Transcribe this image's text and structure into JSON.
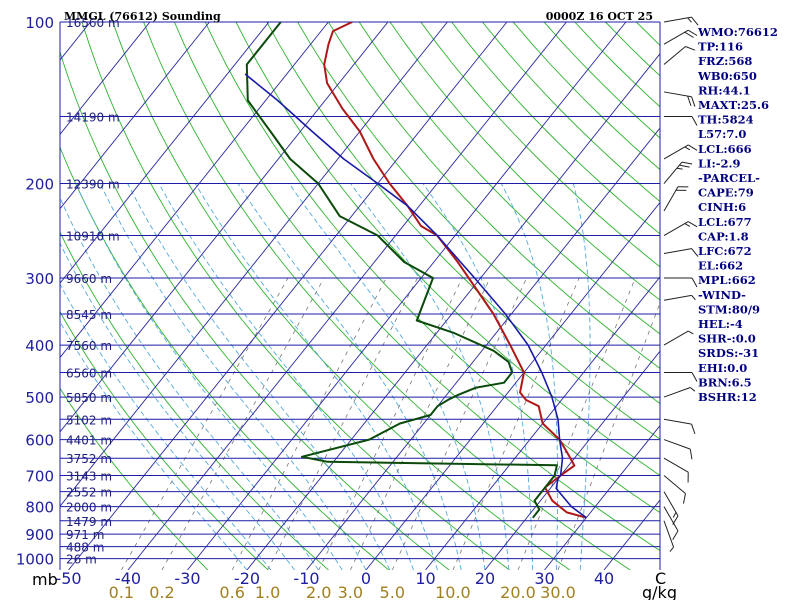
{
  "title": "MMGL (76612) Sounding",
  "datetime": "0000Z 16 OCT 25",
  "pressure_unit": "mb",
  "temp_unit": "C",
  "mixing_unit": "g/kg",
  "colors": {
    "isobar": "#1c1ca8",
    "isotherm": "#2a2aa0",
    "dry_adiabat": "#2fb32f",
    "moist_adiabat": "#55aadd",
    "mixing_ratio": "#777777",
    "temperature": "#b01818",
    "dewpoint": "#0b4a0b",
    "parcel": "#1a1aa8",
    "wind_barb": "#222222",
    "axis_text": "#2020a0",
    "mixing_text": "#a08020",
    "index_text": "#000080"
  },
  "chart_data": {
    "type": "skew-t",
    "x_ticks": [
      -50,
      -40,
      -30,
      -20,
      -10,
      0,
      10,
      20,
      30,
      40
    ],
    "pressure_labels": [
      100,
      200,
      300,
      400,
      500,
      600,
      700,
      800,
      900,
      1000
    ],
    "heights": [
      {
        "p": 100,
        "label": "16560 m"
      },
      {
        "p": 150,
        "label": "14190 m"
      },
      {
        "p": 200,
        "label": "12390 m"
      },
      {
        "p": 250,
        "label": "10910 m"
      },
      {
        "p": 300,
        "label": "9660 m"
      },
      {
        "p": 350,
        "label": "8545 m"
      },
      {
        "p": 400,
        "label": "7560 m"
      },
      {
        "p": 450,
        "label": "6560 m"
      },
      {
        "p": 500,
        "label": "5850 m"
      },
      {
        "p": 550,
        "label": "5102 m"
      },
      {
        "p": 600,
        "label": "4401 m"
      },
      {
        "p": 650,
        "label": "3752 m"
      },
      {
        "p": 700,
        "label": "3143 m"
      },
      {
        "p": 750,
        "label": "2552 m"
      },
      {
        "p": 800,
        "label": "2000 m"
      },
      {
        "p": 850,
        "label": "1479 m"
      },
      {
        "p": 900,
        "label": "971 m"
      },
      {
        "p": 950,
        "label": "488 m"
      },
      {
        "p": 1000,
        "label": "26 m"
      }
    ],
    "mixing_ratios": [
      {
        "w": 0.1,
        "label": "0.1"
      },
      {
        "w": 0.2,
        "label": "0.2"
      },
      {
        "w": 0.6,
        "label": "0.6"
      },
      {
        "w": 1.0,
        "label": "1.0"
      },
      {
        "w": 2.0,
        "label": "2.0"
      },
      {
        "w": 3.0,
        "label": "3.0"
      },
      {
        "w": 5.0,
        "label": "5.0"
      },
      {
        "w": 10.0,
        "label": "10.0"
      },
      {
        "w": 20.0,
        "label": "20.0"
      },
      {
        "w": 30.0,
        "label": "30.0"
      }
    ],
    "temperature": [
      [
        839,
        30
      ],
      [
        820,
        26
      ],
      [
        780,
        22
      ],
      [
        737,
        19
      ],
      [
        700,
        20
      ],
      [
        671,
        21
      ],
      [
        646,
        19
      ],
      [
        600,
        15
      ],
      [
        560,
        10
      ],
      [
        520,
        7
      ],
      [
        506,
        4
      ],
      [
        490,
        2
      ],
      [
        450,
        0
      ],
      [
        400,
        -6
      ],
      [
        350,
        -13
      ],
      [
        300,
        -22
      ],
      [
        280,
        -26
      ],
      [
        250,
        -33
      ],
      [
        240,
        -37
      ],
      [
        220,
        -42
      ],
      [
        200,
        -48
      ],
      [
        180,
        -54
      ],
      [
        160,
        -60
      ],
      [
        145,
        -66
      ],
      [
        130,
        -72
      ],
      [
        120,
        -75
      ],
      [
        110,
        -77
      ],
      [
        104,
        -78
      ],
      [
        100,
        -76
      ]
    ],
    "dewpoint": [
      [
        839,
        21
      ],
      [
        810,
        21
      ],
      [
        780,
        19
      ],
      [
        740,
        19
      ],
      [
        700,
        19
      ],
      [
        670,
        18
      ],
      [
        660,
        -21
      ],
      [
        646,
        -26
      ],
      [
        600,
        -17
      ],
      [
        560,
        -14
      ],
      [
        540,
        -10
      ],
      [
        520,
        -10
      ],
      [
        505,
        -9
      ],
      [
        495,
        -8
      ],
      [
        480,
        -6
      ],
      [
        470,
        -2
      ],
      [
        450,
        -2
      ],
      [
        430,
        -4
      ],
      [
        410,
        -8
      ],
      [
        380,
        -17
      ],
      [
        360,
        -25
      ],
      [
        300,
        -28
      ],
      [
        280,
        -35
      ],
      [
        250,
        -43
      ],
      [
        230,
        -52
      ],
      [
        200,
        -60
      ],
      [
        180,
        -68
      ],
      [
        160,
        -75
      ],
      [
        140,
        -83
      ],
      [
        120,
        -88
      ],
      [
        100,
        -88
      ]
    ],
    "parcel": [
      [
        839,
        30
      ],
      [
        800,
        26
      ],
      [
        740,
        21
      ],
      [
        710,
        20
      ],
      [
        700,
        20
      ],
      [
        650,
        18
      ],
      [
        600,
        15
      ],
      [
        550,
        12
      ],
      [
        500,
        8
      ],
      [
        450,
        3
      ],
      [
        400,
        -3
      ],
      [
        350,
        -11
      ],
      [
        300,
        -21
      ],
      [
        250,
        -33
      ],
      [
        220,
        -42
      ],
      [
        200,
        -50
      ],
      [
        180,
        -59
      ],
      [
        160,
        -68
      ],
      [
        140,
        -78
      ],
      [
        125,
        -87
      ]
    ],
    "winds": [
      {
        "p": 100,
        "dir": 80,
        "spd": 15
      },
      {
        "p": 110,
        "dir": 60,
        "spd": 20
      },
      {
        "p": 120,
        "dir": 50,
        "spd": 10
      },
      {
        "p": 135,
        "dir": 100,
        "spd": 20
      },
      {
        "p": 150,
        "dir": 90,
        "spd": 10
      },
      {
        "p": 180,
        "dir": 60,
        "spd": 15
      },
      {
        "p": 200,
        "dir": 40,
        "spd": 25
      },
      {
        "p": 225,
        "dir": 30,
        "spd": 20
      },
      {
        "p": 250,
        "dir": 60,
        "spd": 15
      },
      {
        "p": 270,
        "dir": 80,
        "spd": 10
      },
      {
        "p": 300,
        "dir": 90,
        "spd": 10
      },
      {
        "p": 330,
        "dir": 80,
        "spd": 5
      },
      {
        "p": 400,
        "dir": 60,
        "spd": 5
      },
      {
        "p": 450,
        "dir": 90,
        "spd": 10
      },
      {
        "p": 500,
        "dir": 70,
        "spd": 5
      },
      {
        "p": 550,
        "dir": 100,
        "spd": 10
      },
      {
        "p": 600,
        "dir": 110,
        "spd": 10
      },
      {
        "p": 650,
        "dir": 120,
        "spd": 10
      },
      {
        "p": 700,
        "dir": 130,
        "spd": 10
      },
      {
        "p": 750,
        "dir": 150,
        "spd": 15
      },
      {
        "p": 800,
        "dir": 150,
        "spd": 10
      },
      {
        "p": 850,
        "dir": 160,
        "spd": 5
      }
    ]
  },
  "indices": [
    "WMO:76612",
    "TP:116",
    "FRZ:568",
    "WB0:650",
    "RH:44.1",
    "MAXT:25.6",
    "TH:5824",
    "L57:7.0",
    "LCL:666",
    "LI:-2.9",
    "-PARCEL-",
    "CAPE:79",
    "CINH:6",
    "LCL:677",
    "CAP:1.8",
    "LFC:672",
    "EL:662",
    "MPL:662",
    "-WIND-",
    "STM:80/9",
    "HEL:-4",
    "SHR-:0.0",
    "SRDS:-31",
    "EHI:0.0",
    "BRN:6.5",
    "BSHR:12"
  ]
}
